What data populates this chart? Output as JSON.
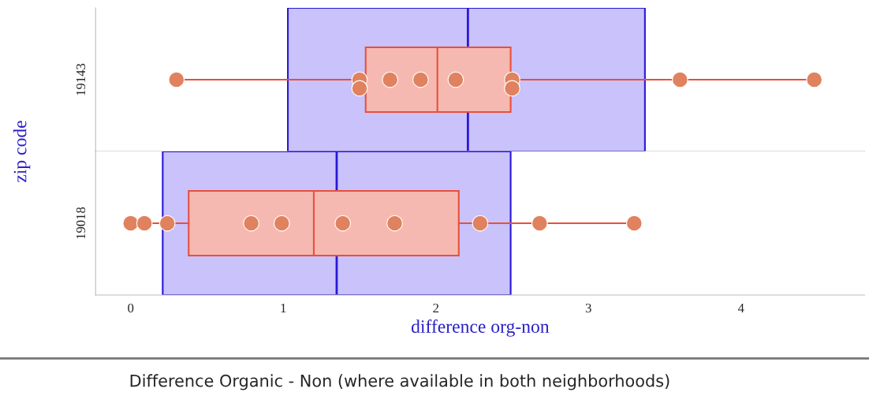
{
  "chart_data": [
    {
      "type": "box",
      "orientation": "horizontal",
      "title": "Difference Organic - Non (where available in both neighborhoods)",
      "ylabel": "zip code",
      "categories": [
        "19143"
      ],
      "color": "#e8503c",
      "boxes": [
        {
          "low": 0.3,
          "q1": 1.54,
          "median": 2.01,
          "q3": 2.49,
          "high": 4.47
        }
      ],
      "series": [
        {
          "type": "scatter",
          "color": "#e0825f",
          "x": [
            "19143",
            "19143",
            "19143",
            "19143",
            "19143",
            "19143",
            "19143",
            "19143",
            "19143",
            "19143"
          ],
          "values": [
            0.3,
            1.5,
            1.5,
            1.7,
            1.9,
            2.13,
            2.5,
            2.5,
            3.6,
            4.48
          ]
        }
      ],
      "ref_lines": [
        {
          "axis": "x",
          "value": 2.21,
          "color": "#2818d8"
        }
      ],
      "bands": [
        {
          "axis": "x",
          "from": 1.03,
          "to": 3.37,
          "color": "#c9c2fb"
        }
      ],
      "xlim": [
        -0.23,
        4.81
      ],
      "tick_labels": "y",
      "grid": false,
      "legend": false
    },
    {
      "type": "box",
      "orientation": "horizontal",
      "xlabel": "difference org-non",
      "categories": [
        "19018"
      ],
      "color": "#e8503c",
      "boxes": [
        {
          "low": 0.0,
          "q1": 0.38,
          "median": 1.2,
          "q3": 2.15,
          "high": 3.3
        }
      ],
      "series": [
        {
          "type": "scatter",
          "color": "#e0825f",
          "x": [
            "19018",
            "19018",
            "19018",
            "19018",
            "19018",
            "19018",
            "19018",
            "19018",
            "19018",
            "19018"
          ],
          "values": [
            0.0,
            0.09,
            0.24,
            0.79,
            0.99,
            1.39,
            1.73,
            2.29,
            2.68,
            3.3
          ]
        }
      ],
      "ref_lines": [
        {
          "axis": "x",
          "value": 1.35,
          "color": "#2818d8"
        }
      ],
      "bands": [
        {
          "axis": "x",
          "from": 0.21,
          "to": 2.49,
          "color": "#c9c2fb"
        }
      ],
      "xlim": [
        -0.23,
        4.81
      ],
      "xticks": [
        0,
        1,
        2,
        3,
        4
      ],
      "grid": false,
      "legend": false
    }
  ]
}
